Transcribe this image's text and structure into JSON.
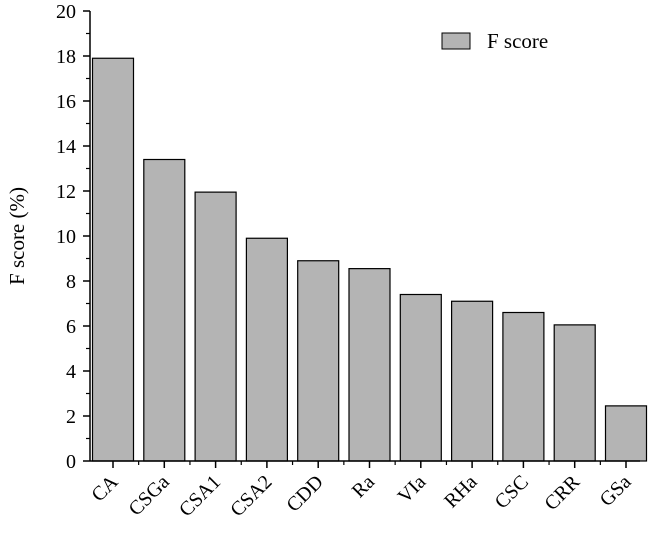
{
  "chart_data": {
    "type": "bar",
    "categories": [
      "CA",
      "CSGa",
      "CSA1",
      "CSA2",
      "CDD",
      "Ra",
      "VIa",
      "RHa",
      "CSC",
      "CRR",
      "GSa"
    ],
    "series": [
      {
        "name": "F score",
        "values": [
          17.9,
          13.4,
          11.95,
          9.9,
          8.9,
          8.55,
          7.4,
          7.1,
          6.6,
          6.05,
          2.45
        ]
      }
    ],
    "title": "",
    "xlabel": "",
    "ylabel": "F score (%)",
    "ylim": [
      0,
      20
    ],
    "yticks": [
      "0",
      "2",
      "4",
      "6",
      "8",
      "10",
      "12",
      "14",
      "16",
      "18",
      "20"
    ],
    "grid": false,
    "legend_position": "top-right",
    "bar_color": "#b4b4b4",
    "bar_edge_color": "#000000"
  }
}
